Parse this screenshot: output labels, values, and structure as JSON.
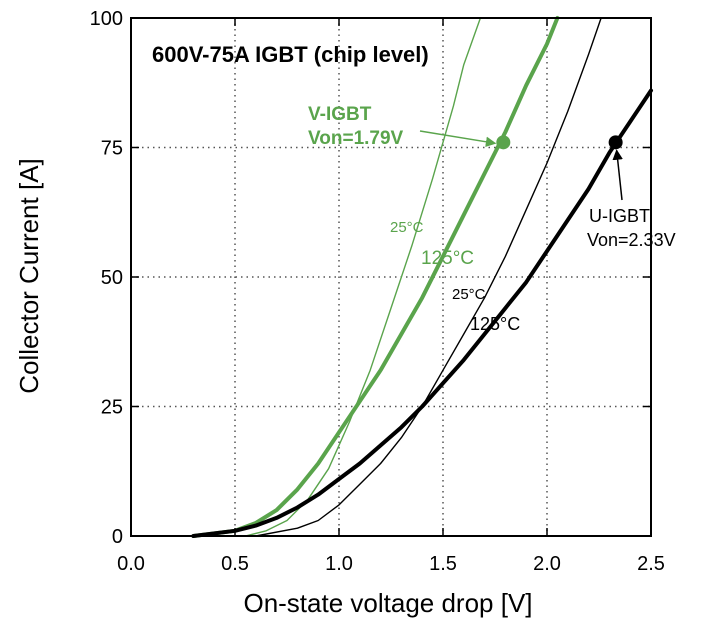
{
  "chart_data": {
    "type": "line",
    "title": "600V-75A IGBT (chip level)",
    "xlabel": "On-state voltage drop [V]",
    "ylabel": "Collector Current [A]",
    "xlim": [
      0,
      2.5
    ],
    "ylim": [
      0,
      100
    ],
    "x_ticks": [
      0.0,
      0.5,
      1.0,
      1.5,
      2.0,
      2.5
    ],
    "x_tick_labels": [
      "0.0",
      "0.5",
      "1.0",
      "1.5",
      "2.0",
      "2.5"
    ],
    "y_ticks": [
      0,
      25,
      50,
      75,
      100
    ],
    "y_tick_labels": [
      "0",
      "25",
      "50",
      "75",
      "100"
    ],
    "grid": true,
    "colors": {
      "v_igbt": "#5aa44c",
      "u_igbt": "#000000"
    },
    "series": [
      {
        "device": "V-IGBT",
        "temperature": "25°C",
        "color": "#5aa44c",
        "width": "thin",
        "points": [
          [
            0.55,
            0
          ],
          [
            0.65,
            1
          ],
          [
            0.75,
            3
          ],
          [
            0.85,
            7
          ],
          [
            0.95,
            13
          ],
          [
            1.05,
            22
          ],
          [
            1.15,
            32
          ],
          [
            1.25,
            44
          ],
          [
            1.35,
            56
          ],
          [
            1.45,
            69
          ],
          [
            1.55,
            83
          ],
          [
            1.6,
            91
          ],
          [
            1.68,
            100
          ]
        ]
      },
      {
        "device": "V-IGBT",
        "temperature": "125°C",
        "color": "#5aa44c",
        "width": "thick",
        "points": [
          [
            0.3,
            0
          ],
          [
            0.5,
            1
          ],
          [
            0.6,
            2.5
          ],
          [
            0.7,
            5
          ],
          [
            0.8,
            9
          ],
          [
            0.9,
            14
          ],
          [
            1.0,
            20
          ],
          [
            1.1,
            26
          ],
          [
            1.2,
            32
          ],
          [
            1.3,
            39
          ],
          [
            1.4,
            46
          ],
          [
            1.5,
            54
          ],
          [
            1.6,
            62
          ],
          [
            1.7,
            70
          ],
          [
            1.8,
            78
          ],
          [
            1.9,
            87
          ],
          [
            2.0,
            95
          ],
          [
            2.05,
            100
          ]
        ]
      },
      {
        "device": "U-IGBT",
        "temperature": "25°C",
        "color": "#000000",
        "width": "thin",
        "points": [
          [
            0.6,
            0
          ],
          [
            0.8,
            1.5
          ],
          [
            0.9,
            3
          ],
          [
            1.0,
            6
          ],
          [
            1.1,
            10
          ],
          [
            1.2,
            14
          ],
          [
            1.3,
            19
          ],
          [
            1.4,
            25
          ],
          [
            1.5,
            32
          ],
          [
            1.6,
            39
          ],
          [
            1.7,
            46
          ],
          [
            1.8,
            54
          ],
          [
            1.9,
            63
          ],
          [
            2.0,
            72
          ],
          [
            2.1,
            82
          ],
          [
            2.2,
            93
          ],
          [
            2.26,
            100
          ]
        ]
      },
      {
        "device": "U-IGBT",
        "temperature": "125°C",
        "color": "#000000",
        "width": "thick",
        "points": [
          [
            0.3,
            0
          ],
          [
            0.5,
            1
          ],
          [
            0.6,
            2
          ],
          [
            0.7,
            3.5
          ],
          [
            0.8,
            5.5
          ],
          [
            0.9,
            8
          ],
          [
            1.0,
            11
          ],
          [
            1.1,
            14
          ],
          [
            1.2,
            17.5
          ],
          [
            1.3,
            21
          ],
          [
            1.4,
            25
          ],
          [
            1.5,
            29.5
          ],
          [
            1.6,
            34
          ],
          [
            1.7,
            39
          ],
          [
            1.8,
            44
          ],
          [
            1.9,
            49
          ],
          [
            2.0,
            55
          ],
          [
            2.1,
            61
          ],
          [
            2.2,
            67
          ],
          [
            2.3,
            74
          ],
          [
            2.4,
            80
          ],
          [
            2.5,
            86
          ]
        ]
      }
    ],
    "markers": [
      {
        "device": "V-IGBT",
        "x": 1.79,
        "y": 76,
        "color": "#5aa44c"
      },
      {
        "device": "U-IGBT",
        "x": 2.33,
        "y": 76,
        "color": "#000000"
      }
    ],
    "annotations": [
      {
        "id": "v-igbt-name",
        "text": "V-IGBT",
        "color": "#5aa44c",
        "bold": true
      },
      {
        "id": "v-igbt-von",
        "text": "Von=1.79V",
        "color": "#5aa44c",
        "bold": true
      },
      {
        "id": "u-igbt-name",
        "text": "U-IGBT",
        "color": "#000000",
        "bold": false
      },
      {
        "id": "u-igbt-von",
        "text": "Von=2.33V",
        "color": "#000000",
        "bold": false
      },
      {
        "id": "v25",
        "text": "25°C",
        "color": "#5aa44c",
        "bold": false
      },
      {
        "id": "v125",
        "text": "125°C",
        "color": "#5aa44c",
        "bold": false
      },
      {
        "id": "u25",
        "text": "25°C",
        "color": "#000000",
        "bold": false
      },
      {
        "id": "u125",
        "text": "125°C",
        "color": "#000000",
        "bold": false
      }
    ]
  }
}
